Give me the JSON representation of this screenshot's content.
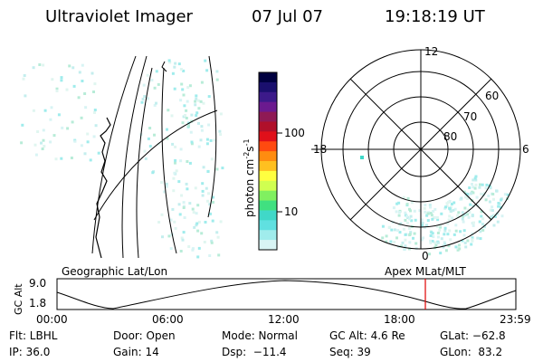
{
  "header": {
    "instrument": "Ultraviolet Imager",
    "date": "07 Jul 07",
    "time": "19:18:19 UT"
  },
  "colorbar": {
    "unit_label": "photon cm",
    "exp_1": "-2",
    "unit_s": "s",
    "exp_2": "-1",
    "ticks": [
      "100",
      "10"
    ],
    "colors": [
      "#000040",
      "#1a0f6e",
      "#3c1a8a",
      "#6b1a8f",
      "#8f1a55",
      "#b0102a",
      "#e0101a",
      "#ff4a10",
      "#ff8c10",
      "#ffc020",
      "#ffff40",
      "#d0ff50",
      "#80f060",
      "#40e080",
      "#40d8c8",
      "#60e0e0",
      "#a0ecec",
      "#d8f4f4"
    ]
  },
  "polar_plot": {
    "top_label": "12",
    "left_label": "18",
    "right_label": "6",
    "bottom_label": "0",
    "ring_labels": [
      "60",
      "70",
      "80"
    ]
  },
  "panel_labels": {
    "left": "Geographic Lat/Lon",
    "right": "Apex MLat/MLT"
  },
  "timeline": {
    "y_axis_label": "GC Alt",
    "y_top": "9.0",
    "y_bottom": "1.8",
    "x_ticks": [
      "00:00",
      "06:00",
      "12:00",
      "18:00",
      "23:59"
    ],
    "marker_color": "#e00000"
  },
  "info": {
    "flt": "Flt: LBHL",
    "ip": "IP: 36.0",
    "door": "Door: Open",
    "gain": "Gain: 14",
    "mode": "Mode: Normal",
    "dsp": "Dsp:  −11.4",
    "gc_alt": "GC Alt: 4.6 Re",
    "seq": "Seq: 39",
    "glat": "GLat: −62.8",
    "glon": "GLon:  83.2"
  }
}
